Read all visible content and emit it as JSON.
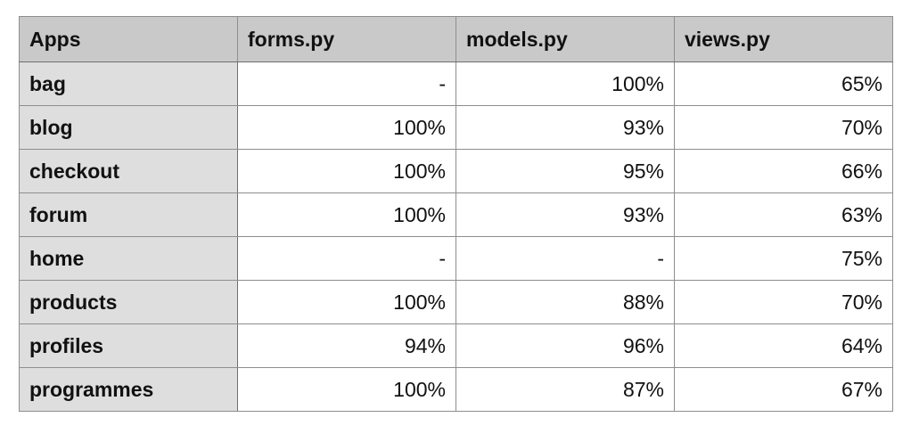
{
  "table": {
    "headers": [
      "Apps",
      "forms.py",
      "models.py",
      "views.py"
    ],
    "rows": [
      {
        "app": "bag",
        "forms": "-",
        "models": "100%",
        "views": "65%"
      },
      {
        "app": "blog",
        "forms": "100%",
        "models": "93%",
        "views": "70%"
      },
      {
        "app": "checkout",
        "forms": "100%",
        "models": "95%",
        "views": "66%"
      },
      {
        "app": "forum",
        "forms": "100%",
        "models": "93%",
        "views": "63%"
      },
      {
        "app": "home",
        "forms": "-",
        "models": "-",
        "views": "75%"
      },
      {
        "app": "products",
        "forms": "100%",
        "models": "88%",
        "views": "70%"
      },
      {
        "app": "profiles",
        "forms": "94%",
        "models": "96%",
        "views": "64%"
      },
      {
        "app": "programmes",
        "forms": "100%",
        "models": "87%",
        "views": "67%"
      }
    ]
  }
}
